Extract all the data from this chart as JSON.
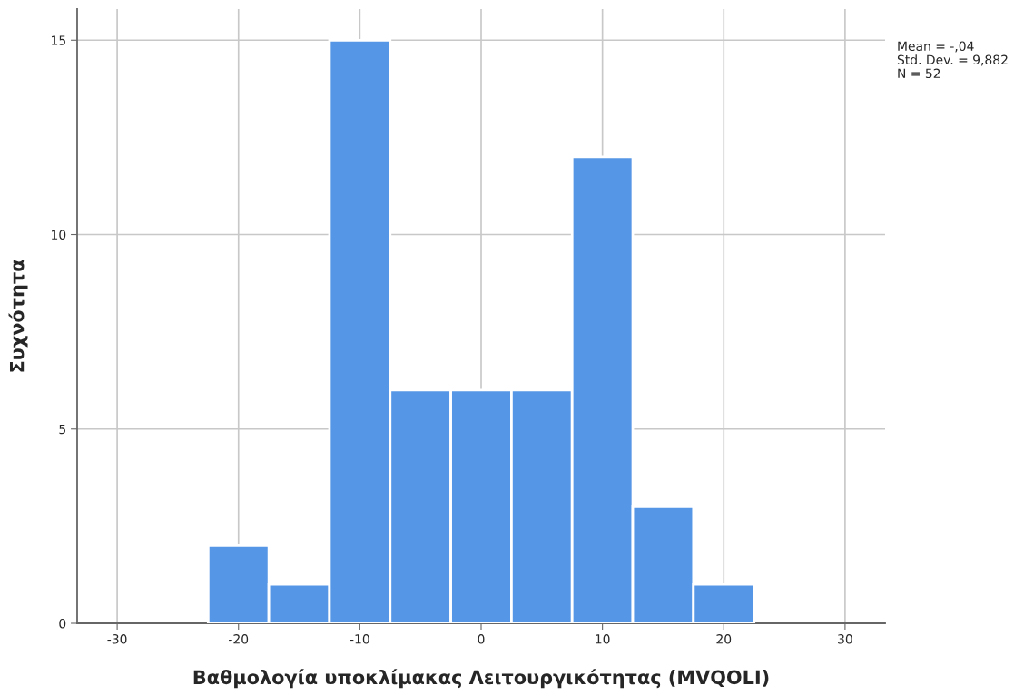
{
  "chart_data": {
    "type": "histogram",
    "xlabel": "Βαθμολογία υποκλίμακας Λειτουργικότητας (MVQOLI)",
    "ylabel": "Συχνότητα",
    "bins": [
      -22.5,
      -17.5,
      -12.5,
      -7.5,
      -2.5,
      2.5,
      7.5,
      12.5,
      17.5,
      22.5
    ],
    "values": [
      2,
      1,
      15,
      6,
      6,
      6,
      12,
      3,
      1
    ],
    "color": "#5596e6",
    "xlim": [
      -33.3,
      33.3
    ],
    "xticks": [
      -30,
      -20,
      -10,
      0,
      10,
      20,
      30
    ],
    "ylim": [
      0,
      15.8
    ],
    "yticks": [
      0,
      5,
      10,
      15
    ],
    "grid": true,
    "annotations": [
      "Mean = -,04",
      "Std. Dev. = 9,882",
      "N = 52"
    ]
  }
}
